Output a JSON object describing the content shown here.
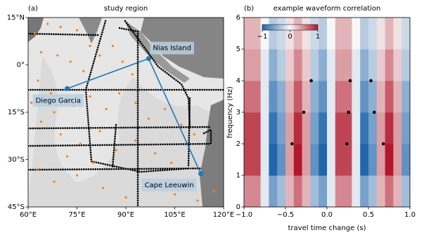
{
  "chart_data": [
    {
      "type": "map",
      "label": "(a)",
      "title": "study region",
      "xlim": [
        60,
        120
      ],
      "ylim": [
        -45,
        15
      ],
      "xticks": [
        {
          "value": 60,
          "label": "60°E"
        },
        {
          "value": 75,
          "label": "75°E"
        },
        {
          "value": 90,
          "label": "90°E"
        },
        {
          "value": 105,
          "label": "105°E"
        },
        {
          "value": 120,
          "label": "120°E"
        }
      ],
      "yticks": [
        {
          "value": 15,
          "label": "15°N"
        },
        {
          "value": 0,
          "label": "0°"
        },
        {
          "value": -15,
          "label": "15°S"
        },
        {
          "value": -30,
          "label": "30°S"
        },
        {
          "value": -45,
          "label": "45°S"
        }
      ],
      "stations": {
        "color": "#ff7f0e",
        "lon": [
          62,
          66,
          70,
          75,
          79,
          64,
          69,
          73,
          77,
          82,
          86,
          89,
          92,
          63,
          67,
          61,
          64,
          68,
          74,
          79,
          84,
          88,
          93,
          97,
          102,
          107,
          111,
          70,
          76,
          82,
          87,
          93,
          99,
          104,
          63,
          68,
          75,
          83,
          90,
          98,
          105,
          112,
          117,
          80,
          72
        ],
        "lat": [
          10,
          13,
          12,
          11,
          6,
          4,
          3,
          1,
          -2,
          3,
          6,
          1,
          -3,
          -5,
          -9,
          -12,
          -18,
          -15,
          -13,
          -10,
          -14,
          -9,
          -12,
          -17,
          -14,
          -19,
          -22,
          -22,
          -25,
          -21,
          -27,
          -24,
          -28,
          -31,
          -33,
          -37,
          -35,
          -39,
          -42,
          -38,
          -41,
          -43,
          -40,
          -31,
          -29
        ]
      },
      "sites": {
        "color": "#1f77b4",
        "names": [
          "Nias Island",
          "Diego Garcia",
          "Cape Leeuwin"
        ],
        "lon": [
          97,
          72,
          113
        ],
        "lat": [
          2,
          -7.5,
          -34.5
        ]
      }
    },
    {
      "type": "heatmap",
      "label": "(b)",
      "title": "example waveform correlation",
      "xlabel": "travel time change (s)",
      "ylabel": "frequency (Hz)",
      "xlim": [
        -1,
        1
      ],
      "ylim": [
        0,
        6
      ],
      "xticks": [
        {
          "value": -1,
          "label": "−1.0"
        },
        {
          "value": -0.5,
          "label": "−0.5"
        },
        {
          "value": 0,
          "label": "0.0"
        },
        0.5,
        {
          "value": 1,
          "label": "1.0"
        }
      ],
      "yticks": [
        0,
        1,
        2,
        3,
        4,
        5,
        6
      ],
      "x": [
        -0.95,
        -0.85,
        -0.75,
        -0.65,
        -0.55,
        -0.45,
        -0.35,
        -0.25,
        -0.15,
        -0.05,
        0.05,
        0.15,
        0.25,
        0.35,
        0.45,
        0.55,
        0.65,
        0.75,
        0.85,
        0.95
      ],
      "y": [
        0.5,
        1.5,
        2.5,
        3.5,
        4.5,
        5.5
      ],
      "z": [
        [
          0.5,
          0.5,
          -0.1,
          -0.6,
          -0.4,
          0.3,
          0.6,
          0.3,
          -0.4,
          -0.6,
          -0.1,
          0.5,
          0.5,
          -0.1,
          -0.6,
          -0.4,
          0.3,
          0.6,
          0.3,
          -0.4
        ],
        [
          0.8,
          0.8,
          -0.1,
          -1,
          -0.7,
          0.4,
          1,
          0.4,
          -0.7,
          -1,
          -0.1,
          0.8,
          0.8,
          -0.1,
          -1,
          -0.7,
          0.4,
          1,
          0.4,
          -0.7
        ],
        [
          0.8,
          0.8,
          -0.1,
          -0.9,
          -0.6,
          0.4,
          0.9,
          0.4,
          -0.6,
          -0.9,
          -0.1,
          0.8,
          0.8,
          -0.1,
          -0.9,
          -0.6,
          0.4,
          0.9,
          0.4,
          -0.6
        ],
        [
          0.6,
          0.6,
          -0.1,
          -0.7,
          -0.5,
          0.3,
          0.7,
          0.3,
          -0.5,
          -0.7,
          -0.1,
          0.6,
          0.6,
          -0.1,
          -0.7,
          -0.5,
          0.3,
          0.7,
          0.3,
          -0.5
        ],
        [
          0.4,
          0.4,
          -0.1,
          -0.5,
          -0.3,
          0.2,
          0.5,
          0.2,
          -0.3,
          -0.5,
          -0.1,
          0.4,
          0.4,
          -0.1,
          -0.5,
          -0.3,
          0.2,
          0.5,
          0.2,
          -0.3
        ],
        [
          0.3,
          0.3,
          0,
          -0.3,
          -0.2,
          0.1,
          0.3,
          0.1,
          -0.2,
          -0.3,
          0,
          0.3,
          0.3,
          0,
          -0.3,
          -0.2,
          0.1,
          0.3,
          0.1,
          -0.2
        ]
      ],
      "colorbar": {
        "lim": [
          -1,
          1
        ],
        "ticks": [
          {
            "value": -1,
            "label": "−1"
          },
          0,
          1
        ]
      },
      "points": {
        "color": "#000000",
        "x": [
          -0.19,
          0.28,
          0.53,
          -0.28,
          0.26,
          0.57,
          -0.42,
          0.24,
          0.68
        ],
        "y": [
          4,
          4,
          4,
          3,
          3,
          3,
          2,
          2,
          2
        ]
      }
    }
  ]
}
